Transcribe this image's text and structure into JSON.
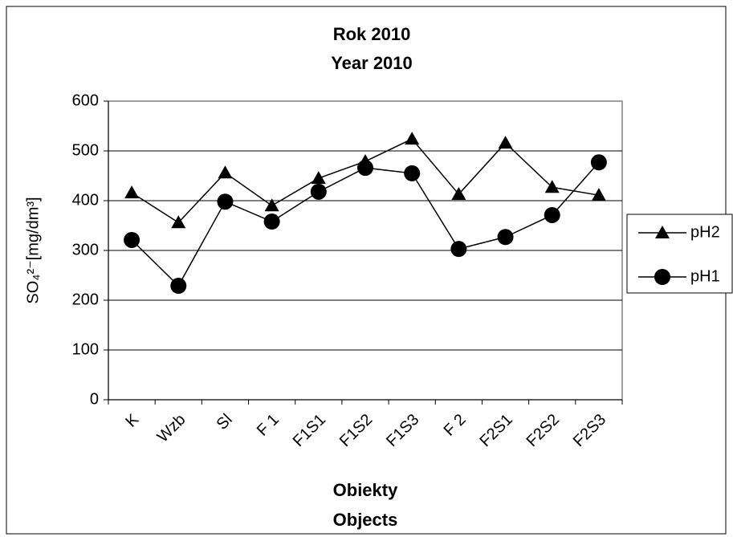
{
  "chart_data": {
    "type": "line",
    "title": [
      "Rok 2010",
      "Year 2010"
    ],
    "x_label": [
      "Obiekty",
      "Objects"
    ],
    "y_label": "SO₄²⁻[mg/dm³]",
    "categories": [
      "K",
      "Wzb",
      "Sl",
      "F 1",
      "F1S1",
      "F1S2",
      "F1S3",
      "F 2",
      "F2S1",
      "F2S2",
      "F2S3"
    ],
    "series": [
      {
        "name": "pH2",
        "color": "#000000",
        "marker": "triangle",
        "values": [
          416,
          356,
          456,
          390,
          445,
          479,
          524,
          413,
          516,
          427,
          411
        ]
      },
      {
        "name": "pH1",
        "color": "#000000",
        "marker": "circle",
        "values": [
          321,
          229,
          398,
          358,
          418,
          466,
          455,
          303,
          327,
          371,
          477
        ]
      }
    ],
    "ylim": [
      0,
      600
    ],
    "yticks": [
      0,
      100,
      200,
      300,
      400,
      500,
      600
    ],
    "grid": true,
    "legend": "right"
  }
}
